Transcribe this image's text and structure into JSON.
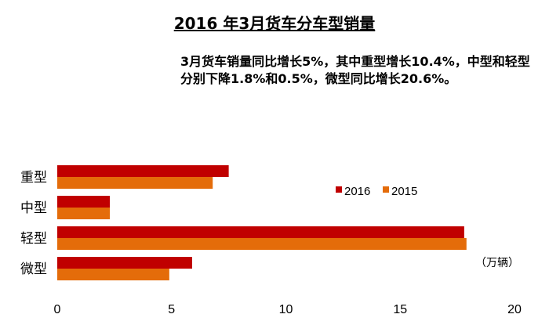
{
  "title": "2016 年3月货车分车型销量",
  "annotation": "3月货车销量同比增长5%，其中重型增长10.4%，中型和轻型分别下降1.8%和0.5%，微型同比增长20.6%。",
  "chart_data": {
    "type": "bar",
    "orientation": "horizontal",
    "title": "2016 年3月货车分车型销量",
    "categories": [
      "重型",
      "中型",
      "轻型",
      "微型"
    ],
    "series": [
      {
        "name": "2016",
        "color": "#c00000",
        "values": [
          7.5,
          2.3,
          17.8,
          5.9
        ]
      },
      {
        "name": "2015",
        "color": "#e46c0a",
        "values": [
          6.8,
          2.3,
          17.9,
          4.9
        ]
      }
    ],
    "xlim": [
      0,
      20
    ],
    "xticks": [
      "0",
      "5",
      "10",
      "15",
      "20"
    ],
    "unit_label": "（万辆）",
    "legend": "top-right",
    "grid": false
  }
}
